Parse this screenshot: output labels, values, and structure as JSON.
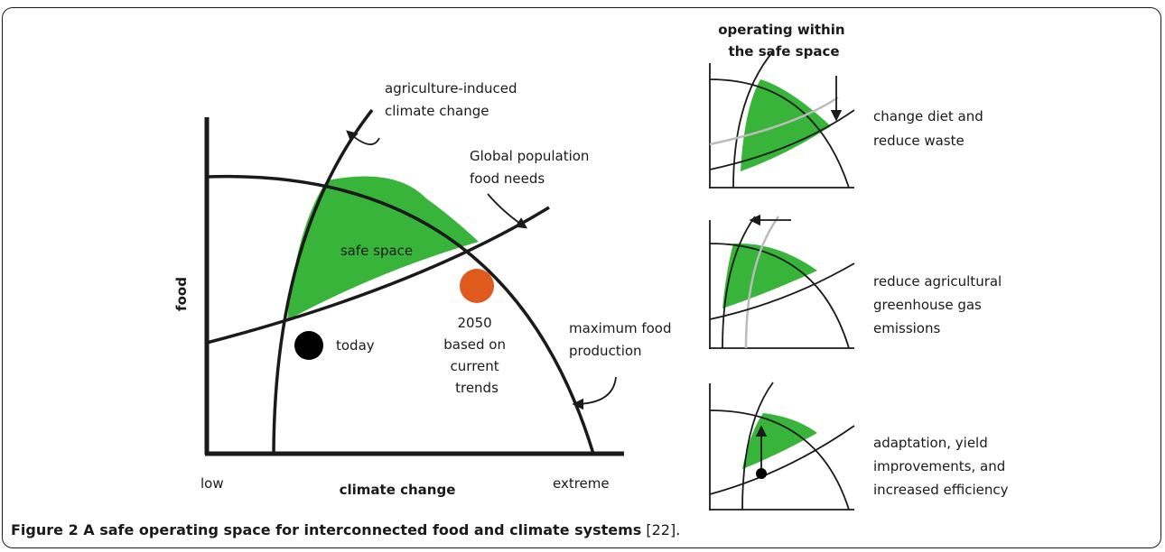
{
  "colors": {
    "safe_space": "#38b43a",
    "line": "#1a1a1a",
    "grey_line": "#bbbbbb",
    "marker_2050": "#e05a1e",
    "marker_today": "#000000"
  },
  "main": {
    "y_axis_label": "food",
    "x_axis_label": "climate change",
    "x_low": "low",
    "x_high": "extreme",
    "safe_space_label": "safe space",
    "annotations": {
      "agriculture_climate": [
        "agriculture-induced",
        "climate change"
      ],
      "population_food": [
        "Global population",
        "food needs"
      ],
      "max_food": [
        "maximum food",
        "production"
      ]
    },
    "markers": {
      "today": "today",
      "future": [
        "2050",
        "based on",
        "current",
        "trends"
      ]
    }
  },
  "right": {
    "heading": [
      "operating within",
      "the safe space"
    ],
    "panels": [
      {
        "label": [
          "change diet and",
          "reduce waste"
        ]
      },
      {
        "label": [
          "reduce agricultural",
          "greenhouse gas",
          "emissions"
        ]
      },
      {
        "label": [
          "adaptation, yield",
          "improvements, and",
          "increased efficiency"
        ]
      }
    ]
  },
  "caption": {
    "bold": "Figure 2 A safe operating space for interconnected food and climate systems",
    "ref": " [22]."
  }
}
